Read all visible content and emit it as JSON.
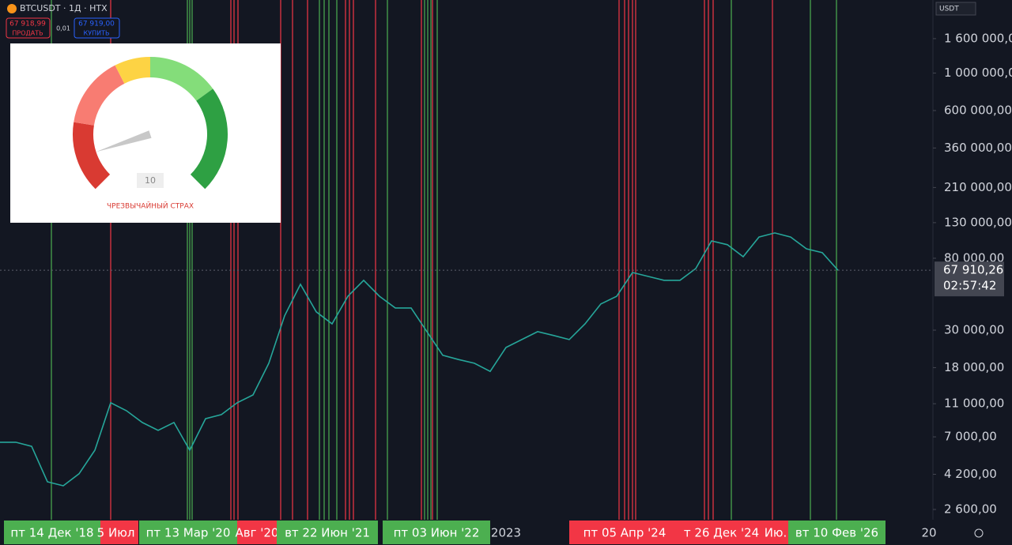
{
  "header": {
    "symbol": "BTCUSDT · 1Д · HTX",
    "sell_price": "67 918,99",
    "sell_label": "ПРОДАТЬ",
    "spread": "0,01",
    "buy_price": "67 919,00",
    "buy_label": "КУПИТЬ"
  },
  "gauge": {
    "value": 10,
    "label": "ЧРЕЗВЫЧАЙНЫЙ СТРАХ"
  },
  "price_axis": {
    "unit": "USDT",
    "range": [
      2260,
      2710000
    ],
    "ticks": [
      {
        "value": 1600000,
        "label": "1 600 000,00"
      },
      {
        "value": 1000000,
        "label": "1 000 000,00"
      },
      {
        "value": 600000,
        "label": "600 000,00"
      },
      {
        "value": 360000,
        "label": "360 000,00"
      },
      {
        "value": 210000,
        "label": "210 000,00"
      },
      {
        "value": 130000,
        "label": "130 000,00"
      },
      {
        "value": 80000,
        "label": "80 000,00"
      },
      {
        "value": 30000,
        "label": "30 000,00"
      },
      {
        "value": 18000,
        "label": "18 000,00"
      },
      {
        "value": 11000,
        "label": "11 000,00"
      },
      {
        "value": 7000,
        "label": "7 000,00"
      },
      {
        "value": 4200,
        "label": "4 200,00"
      },
      {
        "value": 2600,
        "label": "2 600,00"
      }
    ],
    "current": {
      "value": 67910.26,
      "label": "67 910,26"
    },
    "timer": "02:57:42"
  },
  "price": {
    "color": "#26a69a",
    "values": [
      6500,
      6500,
      6150,
      3790,
      3590,
      4230,
      5830,
      11150,
      10000,
      8510,
      7640,
      8510,
      5830,
      8970,
      9480,
      11150,
      12400,
      19100,
      36500,
      56100,
      38500,
      32700,
      47600,
      59200,
      47600,
      40600,
      40600,
      29400,
      21300,
      20100,
      19100,
      17100,
      23700,
      26400,
      29400,
      27900,
      26400,
      32700,
      42900,
      47600,
      65900,
      62400,
      59200,
      59200,
      69500,
      101400,
      96200,
      81700,
      106900,
      113000,
      106900,
      91000,
      86300,
      67910
    ]
  },
  "time_axis": [
    {
      "label": "пт 14 Дек '18",
      "color": "#4caf50"
    },
    {
      "label": "5 Июл '",
      "color": "#f23645"
    },
    {
      "label": "пт 13 Мар '20",
      "color": "#4caf50"
    },
    {
      "label": "Авг '20",
      "color": "#f23645"
    },
    {
      "label": "вт 22 Июн '21",
      "color": "#4caf50"
    },
    {
      "label": "пт 03 Июн '22",
      "color": "#4caf50"
    },
    {
      "label": "2023",
      "color": null
    },
    {
      "label": "пт 05 Апр '24",
      "color": "#f23645"
    },
    {
      "label": "т 26 Дек '24",
      "color": "#f23645"
    },
    {
      "label": "Ию.",
      "color": "#f23645"
    },
    {
      "label": "вт 10 Фев '26",
      "color": "#4caf50"
    },
    {
      "label": "20",
      "color": null
    }
  ]
}
